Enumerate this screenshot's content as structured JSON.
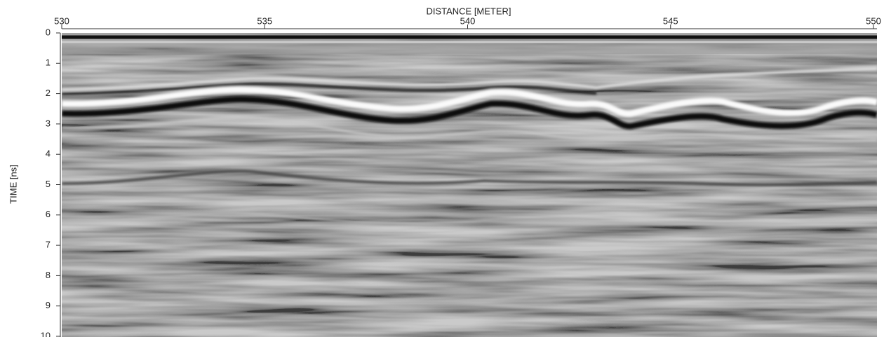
{
  "chart_data": {
    "type": "radargram",
    "x_label": "DISTANCE [METER]",
    "y_label": "TIME [ns]",
    "xlim": [
      530,
      550
    ],
    "xticks": [
      530,
      535,
      540,
      545,
      550
    ],
    "ylim": [
      0,
      10
    ],
    "yticks": [
      0,
      1,
      2,
      3,
      4,
      5,
      6,
      7,
      8,
      9,
      10
    ]
  }
}
